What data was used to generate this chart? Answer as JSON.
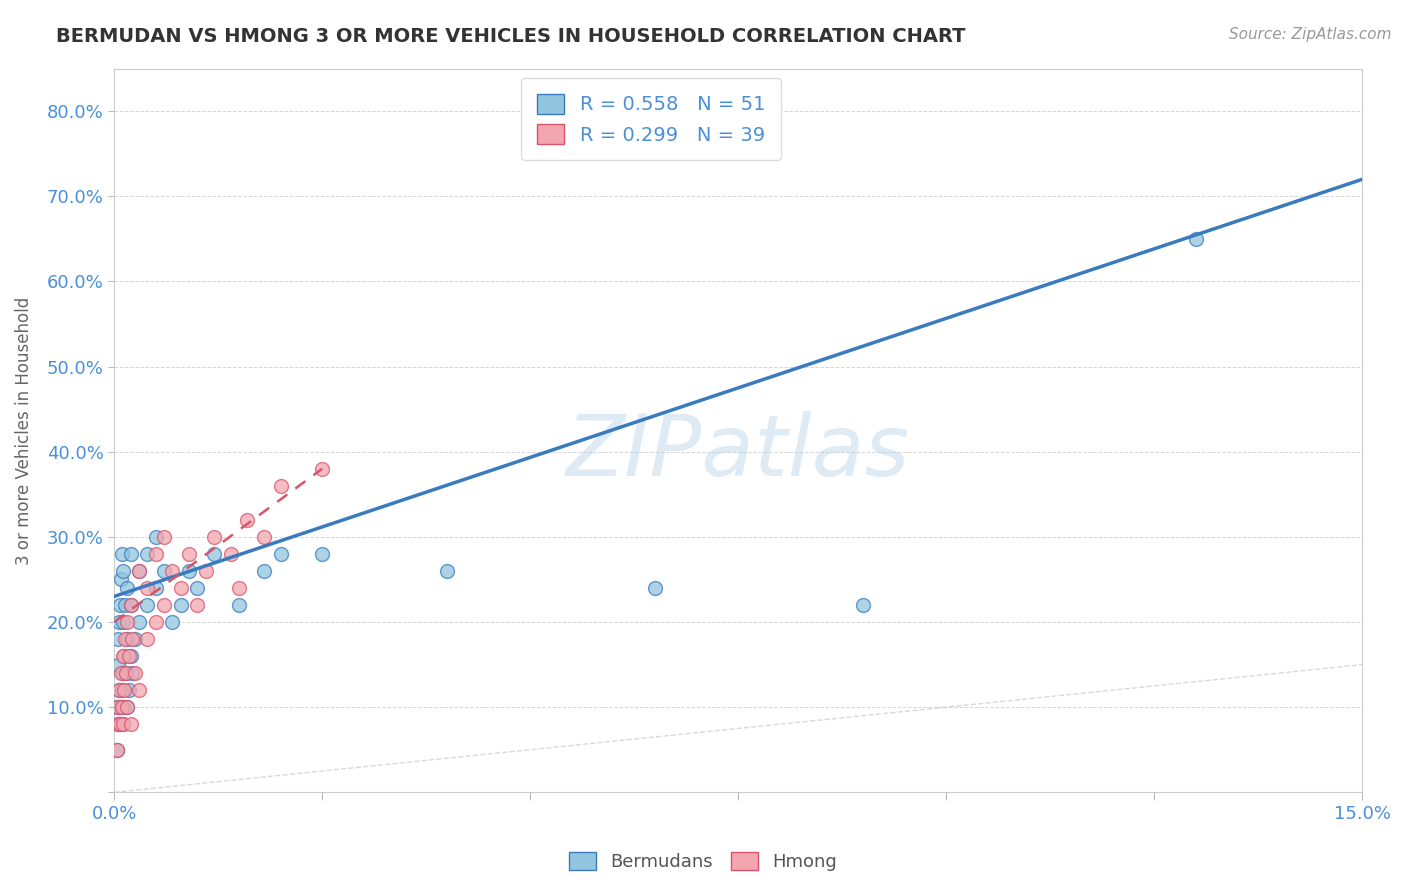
{
  "title": "BERMUDAN VS HMONG 3 OR MORE VEHICLES IN HOUSEHOLD CORRELATION CHART",
  "source_text": "Source: ZipAtlas.com",
  "xlabel": "",
  "ylabel": "3 or more Vehicles in Household",
  "xlim": [
    0.0,
    0.15
  ],
  "ylim": [
    0.0,
    0.85
  ],
  "xtick_positions": [
    0.0,
    0.025,
    0.05,
    0.075,
    0.1,
    0.125,
    0.15
  ],
  "xtick_labels": [
    "0.0%",
    "",
    "",
    "",
    "",
    "",
    "15.0%"
  ],
  "ytick_positions": [
    0.0,
    0.1,
    0.2,
    0.3,
    0.4,
    0.5,
    0.6,
    0.7,
    0.8
  ],
  "ytick_labels": [
    "",
    "10.0%",
    "20.0%",
    "30.0%",
    "40.0%",
    "50.0%",
    "60.0%",
    "70.0%",
    "80.0%"
  ],
  "bermudans_color": "#92c5de",
  "hmong_color": "#f4a6b0",
  "bermudans_line_color": "#3a7bbf",
  "hmong_line_color": "#d9546a",
  "ref_line_color": "#c0c0c0",
  "legend_R_bermudans": "R = 0.558",
  "legend_N_bermudans": "N = 51",
  "legend_R_hmong": "R = 0.299",
  "legend_N_hmong": "N = 39",
  "watermark": "ZIPatlas",
  "background_color": "#ffffff",
  "grid_color": "#cccccc",
  "bermudans_x": [
    0.0003,
    0.0003,
    0.0004,
    0.0004,
    0.0005,
    0.0005,
    0.0006,
    0.0006,
    0.0007,
    0.0007,
    0.0008,
    0.0008,
    0.0009,
    0.0009,
    0.001,
    0.001,
    0.001,
    0.001,
    0.0012,
    0.0012,
    0.0013,
    0.0014,
    0.0015,
    0.0015,
    0.0016,
    0.0018,
    0.002,
    0.002,
    0.002,
    0.0022,
    0.0025,
    0.003,
    0.003,
    0.004,
    0.004,
    0.005,
    0.005,
    0.006,
    0.007,
    0.008,
    0.009,
    0.01,
    0.012,
    0.015,
    0.018,
    0.02,
    0.025,
    0.04,
    0.065,
    0.09,
    0.13
  ],
  "bermudans_y": [
    0.05,
    0.1,
    0.08,
    0.15,
    0.1,
    0.18,
    0.12,
    0.2,
    0.08,
    0.22,
    0.1,
    0.25,
    0.12,
    0.28,
    0.08,
    0.14,
    0.2,
    0.26,
    0.1,
    0.16,
    0.22,
    0.14,
    0.1,
    0.18,
    0.24,
    0.12,
    0.16,
    0.22,
    0.28,
    0.14,
    0.18,
    0.2,
    0.26,
    0.22,
    0.28,
    0.24,
    0.3,
    0.26,
    0.2,
    0.22,
    0.26,
    0.24,
    0.28,
    0.22,
    0.26,
    0.28,
    0.28,
    0.26,
    0.24,
    0.22,
    0.65
  ],
  "hmong_x": [
    0.0003,
    0.0004,
    0.0005,
    0.0006,
    0.0007,
    0.0008,
    0.0009,
    0.001,
    0.001,
    0.0012,
    0.0013,
    0.0014,
    0.0015,
    0.0016,
    0.0018,
    0.002,
    0.002,
    0.0022,
    0.0025,
    0.003,
    0.003,
    0.004,
    0.004,
    0.005,
    0.005,
    0.006,
    0.006,
    0.007,
    0.008,
    0.009,
    0.01,
    0.011,
    0.012,
    0.014,
    0.015,
    0.016,
    0.018,
    0.02,
    0.025
  ],
  "hmong_y": [
    0.05,
    0.08,
    0.1,
    0.12,
    0.08,
    0.14,
    0.1,
    0.08,
    0.16,
    0.12,
    0.18,
    0.14,
    0.1,
    0.2,
    0.16,
    0.08,
    0.22,
    0.18,
    0.14,
    0.12,
    0.26,
    0.18,
    0.24,
    0.2,
    0.28,
    0.22,
    0.3,
    0.26,
    0.24,
    0.28,
    0.22,
    0.26,
    0.3,
    0.28,
    0.24,
    0.32,
    0.3,
    0.36,
    0.38
  ],
  "blue_line_x0": 0.0,
  "blue_line_y0": 0.23,
  "blue_line_x1": 0.15,
  "blue_line_y1": 0.72,
  "pink_line_x0": 0.0,
  "pink_line_y0": 0.2,
  "pink_line_x1": 0.025,
  "pink_line_y1": 0.38
}
